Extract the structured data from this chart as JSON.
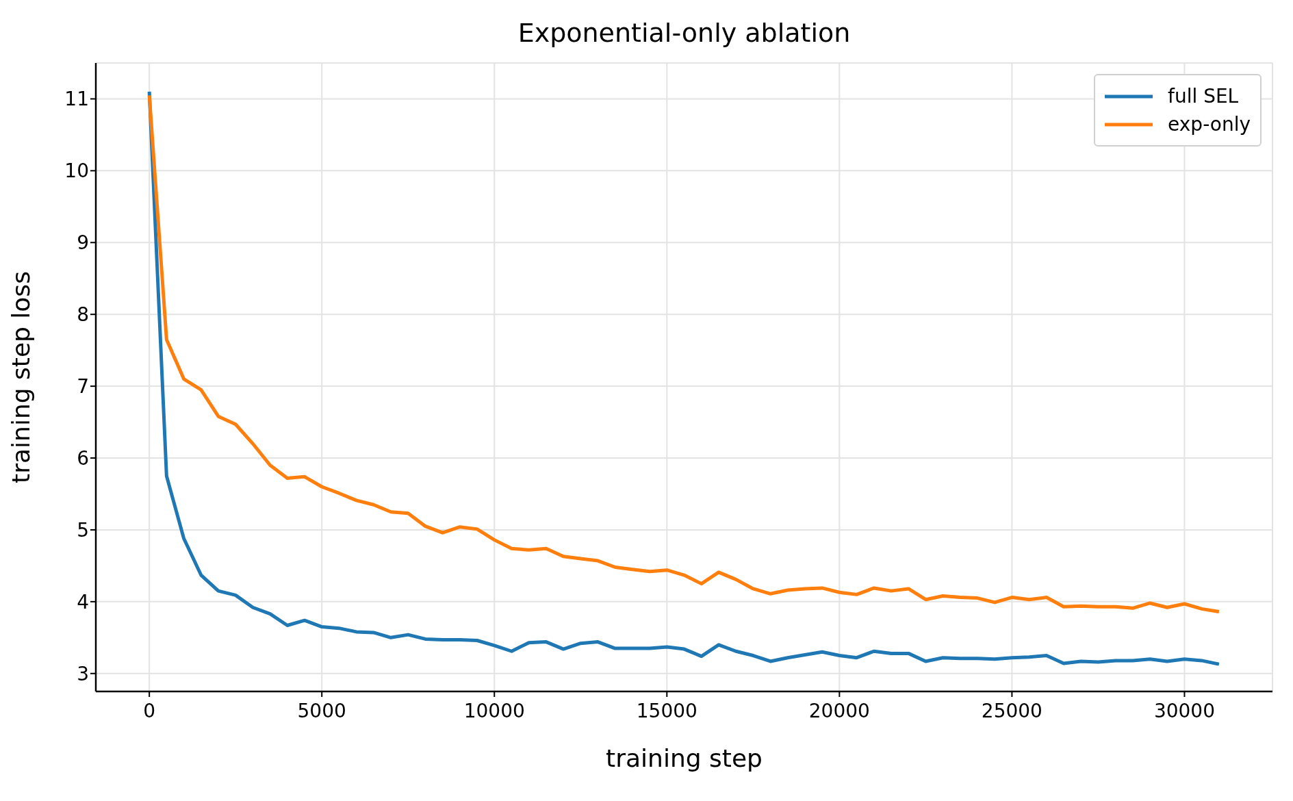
{
  "chart_data": {
    "type": "line",
    "title": "Exponential-only ablation",
    "xlabel": "training step",
    "ylabel": "training step loss",
    "x": [
      0,
      500,
      1000,
      1500,
      2000,
      2500,
      3000,
      3500,
      4000,
      4500,
      5000,
      5500,
      6000,
      6500,
      7000,
      7500,
      8000,
      8500,
      9000,
      9500,
      10000,
      10500,
      11000,
      11500,
      12000,
      12500,
      13000,
      13500,
      14000,
      14500,
      15000,
      15500,
      16000,
      16500,
      17000,
      17500,
      18000,
      18500,
      19000,
      19500,
      20000,
      20500,
      21000,
      21500,
      22000,
      22500,
      23000,
      23500,
      24000,
      24500,
      25000,
      25500,
      26000,
      26500,
      27000,
      27500,
      28000,
      28500,
      29000,
      29500,
      30000,
      30500,
      31000
    ],
    "series": [
      {
        "name": "full SEL",
        "color": "#1f77b4",
        "values": [
          11.1,
          5.75,
          4.88,
          4.37,
          4.15,
          4.09,
          3.92,
          3.83,
          3.67,
          3.74,
          3.65,
          3.63,
          3.58,
          3.57,
          3.5,
          3.54,
          3.48,
          3.47,
          3.47,
          3.46,
          3.39,
          3.31,
          3.43,
          3.44,
          3.34,
          3.42,
          3.44,
          3.35,
          3.35,
          3.35,
          3.37,
          3.34,
          3.24,
          3.4,
          3.31,
          3.25,
          3.17,
          3.22,
          3.26,
          3.3,
          3.25,
          3.22,
          3.31,
          3.28,
          3.28,
          3.17,
          3.22,
          3.21,
          3.21,
          3.2,
          3.22,
          3.23,
          3.25,
          3.14,
          3.17,
          3.16,
          3.18,
          3.18,
          3.2,
          3.17,
          3.2,
          3.18,
          3.13
        ]
      },
      {
        "name": "exp-only",
        "color": "#ff7f0e",
        "values": [
          11.05,
          7.65,
          7.1,
          6.95,
          6.58,
          6.47,
          6.2,
          5.9,
          5.72,
          5.74,
          5.6,
          5.51,
          5.41,
          5.35,
          5.25,
          5.23,
          5.05,
          4.96,
          5.04,
          5.01,
          4.86,
          4.74,
          4.72,
          4.74,
          4.63,
          4.6,
          4.57,
          4.48,
          4.45,
          4.42,
          4.44,
          4.37,
          4.25,
          4.41,
          4.31,
          4.18,
          4.11,
          4.16,
          4.18,
          4.19,
          4.13,
          4.1,
          4.19,
          4.15,
          4.18,
          4.03,
          4.08,
          4.06,
          4.05,
          3.99,
          4.06,
          4.03,
          4.06,
          3.93,
          3.94,
          3.93,
          3.93,
          3.91,
          3.98,
          3.92,
          3.97,
          3.9,
          3.86
        ]
      }
    ],
    "xlim": [
      -1550,
      32550
    ],
    "xticks": [
      0,
      5000,
      10000,
      15000,
      20000,
      25000,
      30000
    ],
    "ylim": [
      2.75,
      11.5
    ],
    "yticks": [
      3,
      4,
      5,
      6,
      7,
      8,
      9,
      10,
      11
    ],
    "grid": true,
    "legend": "top right",
    "marker": "none",
    "line_style": "solid"
  }
}
